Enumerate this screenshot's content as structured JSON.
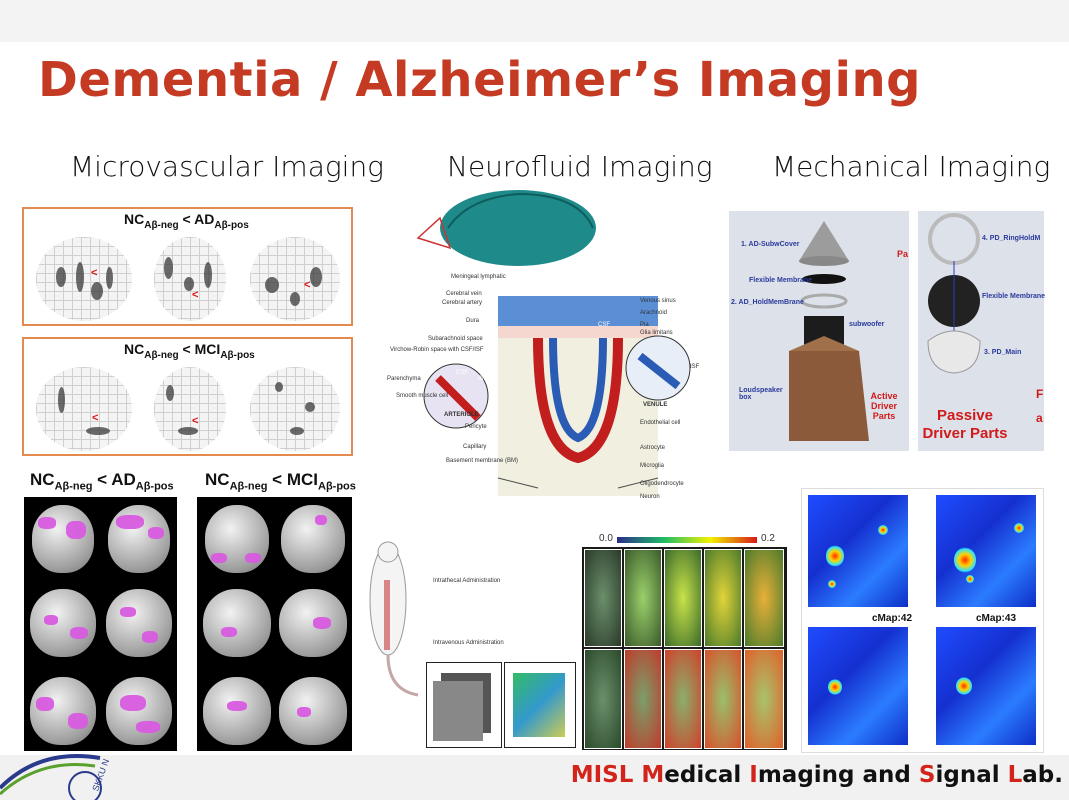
{
  "title": "Dementia / Alzheimer’s Imaging",
  "sections": {
    "microvascular": "Microvascular Imaging",
    "neurofluid": "Neurofluid Imaging",
    "mechanical": "Mechanical Imaging"
  },
  "micro": {
    "panel1": {
      "nc": "NC",
      "nc_sub": "Aβ-neg",
      "op": " < ",
      "grp": "AD",
      "grp_sub": "Aβ-pos"
    },
    "panel2": {
      "nc": "NC",
      "nc_sub": "Aβ-neg",
      "op": " < ",
      "grp": "MCI",
      "grp_sub": "Aβ-pos"
    },
    "panel3": {
      "nc": "NC",
      "nc_sub": "Aβ-neg",
      "op": " < ",
      "grp": "AD",
      "grp_sub": "Aβ-pos"
    },
    "panel4": {
      "nc": "NC",
      "nc_sub": "Aβ-neg",
      "op": " < ",
      "grp": "MCI",
      "grp_sub": "Aβ-pos"
    },
    "marker": "<"
  },
  "neuro": {
    "labels_left": [
      "Meningeal lymphatic",
      "Cerebral vein",
      "Cerebral artery",
      "Dura",
      "Subarachnoid space",
      "Virchow-Robin space with CSF/ISF",
      "Parenchyma",
      "Smooth muscle cell",
      "ARTERIOLE",
      "Pericyte",
      "Capillary",
      "Basement membrane (BM)"
    ],
    "labels_right": [
      "Venous sinus",
      "Arachnoid",
      "Pia",
      "Glia limitans",
      "VENULE",
      "Endothelial cell",
      "Astrocyte",
      "Microglia",
      "Oligodendrocyte",
      "Neuron"
    ],
    "inner": {
      "csf_l": "CSF",
      "bm": "BM",
      "csf_c": "CSF",
      "isf": "ISF"
    },
    "admin1": "Intrathecal Administration",
    "admin2": "Intravenous Administration",
    "scale_min": "0.0",
    "scale_max": "0.2"
  },
  "mech": {
    "left": {
      "subwcover": "1. AD-SubwCover",
      "flex": "Flexible Membrane",
      "holdmem": "2. AD_HoldMemBrane",
      "subwoofer": "subwoofer",
      "loudspeaker": "Loudspeaker box",
      "active": "Active Driver Parts",
      "pa": "Pa"
    },
    "right": {
      "ringhold": "4. PD_RingHoldM",
      "flex": "Flexible Membrane",
      "main": "3. PD_Main",
      "passive": "Passive Driver Parts",
      "edge1": "F",
      "edge2": "a"
    },
    "cmaps": [
      "cMap:42",
      "cMap:43"
    ]
  },
  "footer": {
    "prefix": "MISL ",
    "m": "M",
    "edical": "edical ",
    "i": "I",
    "maging": "maging and ",
    "s": "S",
    "ignal": "ignal ",
    "l": "L",
    "ab": "ab."
  },
  "logo_text": "SKKU N"
}
